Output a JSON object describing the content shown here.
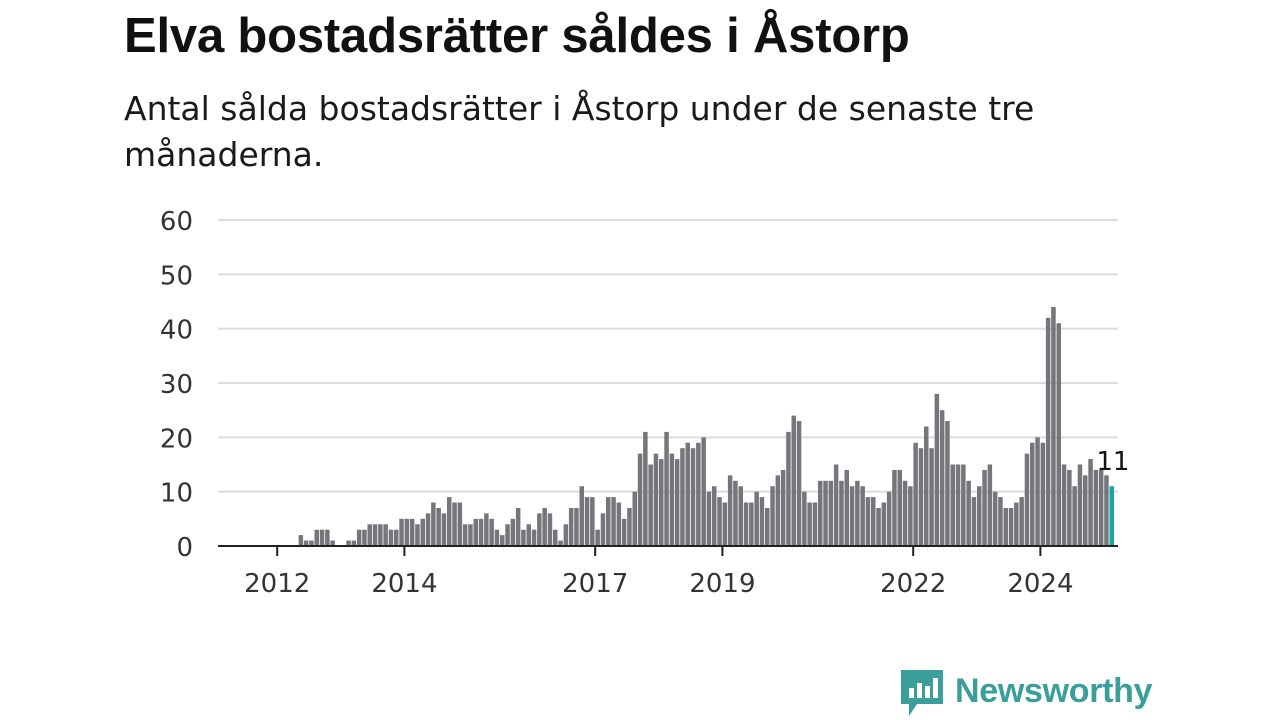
{
  "title": "Elva bostadsrätter såldes i Åstorp",
  "subtitle": "Antal sålda bostadsrätter i Åstorp under de senaste tre månaderna.",
  "logo": {
    "text": "Newsworthy",
    "icon": "newsworthy-chart-bubble-icon",
    "color": "#3a9e9a"
  },
  "chart_data": {
    "type": "bar",
    "title": "",
    "xlabel": "",
    "ylabel": "",
    "ylim": [
      0,
      60
    ],
    "yticks": [
      0,
      10,
      20,
      30,
      40,
      50,
      60
    ],
    "xtick_labels": [
      "2012",
      "2014",
      "2017",
      "2019",
      "2022",
      "2024"
    ],
    "grid": true,
    "bar_color": "#76757c",
    "highlight_color": "#1aa5a3",
    "highlight_label": "11",
    "x_start": "2011-09",
    "values": [
      0,
      0,
      0,
      0,
      0,
      0,
      0,
      0,
      2,
      1,
      1,
      3,
      3,
      3,
      1,
      0,
      0,
      1,
      1,
      3,
      3,
      4,
      4,
      4,
      4,
      3,
      3,
      5,
      5,
      5,
      4,
      5,
      6,
      8,
      7,
      6,
      9,
      8,
      8,
      4,
      4,
      5,
      5,
      6,
      5,
      3,
      2,
      4,
      5,
      7,
      3,
      4,
      3,
      6,
      7,
      6,
      3,
      1,
      4,
      7,
      7,
      11,
      9,
      9,
      3,
      6,
      9,
      9,
      8,
      5,
      7,
      10,
      17,
      21,
      15,
      17,
      16,
      21,
      17,
      16,
      18,
      19,
      18,
      19,
      20,
      10,
      11,
      9,
      8,
      13,
      12,
      11,
      8,
      8,
      10,
      9,
      7,
      11,
      13,
      14,
      21,
      24,
      23,
      10,
      8,
      8,
      12,
      12,
      12,
      15,
      12,
      14,
      11,
      12,
      11,
      9,
      9,
      7,
      8,
      10,
      14,
      14,
      12,
      11,
      19,
      18,
      22,
      18,
      28,
      25,
      23,
      15,
      15,
      15,
      12,
      9,
      11,
      14,
      15,
      10,
      9,
      7,
      7,
      8,
      9,
      17,
      19,
      20,
      19,
      42,
      44,
      41,
      15,
      14,
      11,
      15,
      13,
      16,
      14,
      14,
      13,
      11
    ]
  }
}
